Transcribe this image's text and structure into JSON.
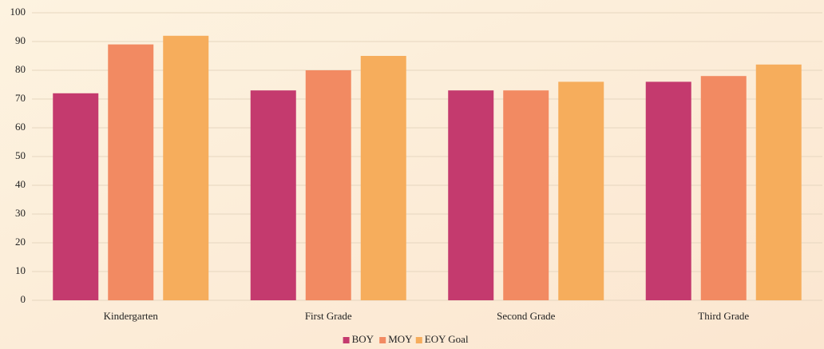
{
  "chart_data": {
    "type": "bar",
    "categories": [
      "Kindergarten",
      "First Grade",
      "Second Grade",
      "Third Grade"
    ],
    "series": [
      {
        "name": "BOY",
        "color": "#c43a6e",
        "values": [
          72,
          73,
          73,
          76
        ]
      },
      {
        "name": "MOY",
        "color": "#f28a62",
        "values": [
          89,
          80,
          73,
          78
        ]
      },
      {
        "name": "EOY Goal",
        "color": "#f6ad5c",
        "values": [
          92,
          85,
          76,
          82
        ]
      }
    ],
    "ylim": [
      0,
      100
    ],
    "yticks": [
      0,
      10,
      20,
      30,
      40,
      50,
      60,
      70,
      80,
      90,
      100
    ],
    "grid": true,
    "legend": "bottom"
  }
}
